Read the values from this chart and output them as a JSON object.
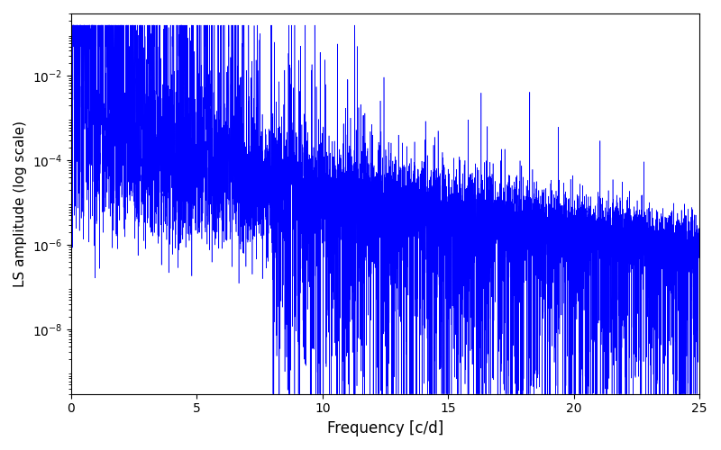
{
  "xlabel": "Frequency [c/d]",
  "ylabel": "LS amplitude (log scale)",
  "line_color": "#0000FF",
  "xlim": [
    0,
    25
  ],
  "ylim": [
    3e-10,
    0.3
  ],
  "freq_max": 25.0,
  "n_points": 10000,
  "seed": 7,
  "figsize": [
    8.0,
    5.0
  ],
  "dpi": 100
}
